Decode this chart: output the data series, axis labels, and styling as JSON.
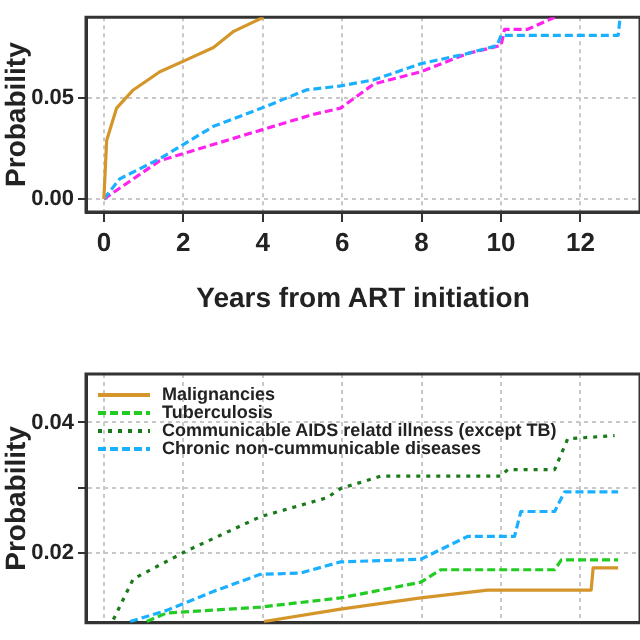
{
  "chart_data": [
    {
      "type": "line",
      "xlabel": "Years from ART initiation",
      "ylabel": "Probability",
      "xlim": [
        -0.45,
        13.5
      ],
      "ylim": [
        -0.0064,
        0.09
      ],
      "xticks": [
        0,
        2,
        4,
        6,
        8,
        10,
        12
      ],
      "yticks": [
        {
          "value": 0,
          "label": "0.00"
        },
        0.05
      ],
      "grid": true,
      "legend": false,
      "marker": "none",
      "series": [
        {
          "color": "#d4962a",
          "line_style": "solid",
          "x": [
            0,
            0.07,
            0.32,
            0.74,
            1.41,
            2.09,
            2.76,
            3.27,
            4.02
          ],
          "values": [
            0,
            0.029,
            0.045,
            0.054,
            0.063,
            0.069,
            0.075,
            0.083,
            0.09
          ]
        },
        {
          "color": "#1ab0ff",
          "line_style": "dashed",
          "x": [
            0,
            0.4,
            1.41,
            2.76,
            4.1,
            5.1,
            5.96,
            6.8,
            7.98,
            9.15,
            9.9,
            10.0,
            12.95,
            13.0
          ],
          "values": [
            0,
            0.01,
            0.02,
            0.036,
            0.046,
            0.054,
            0.056,
            0.059,
            0.067,
            0.072,
            0.076,
            0.081,
            0.081,
            0.09
          ]
        },
        {
          "color": "#ff22ee",
          "line_style": "dashed",
          "x": [
            0,
            1.41,
            4.1,
            5.29,
            5.96,
            6.8,
            7.98,
            9.15,
            10.0,
            10.09,
            10.67,
            11.35
          ],
          "values": [
            0,
            0.019,
            0.035,
            0.042,
            0.045,
            0.057,
            0.063,
            0.072,
            0.076,
            0.084,
            0.084,
            0.09
          ]
        }
      ]
    },
    {
      "type": "line",
      "ylabel": "Probability",
      "xlim": [
        -0.45,
        13.5
      ],
      "ylim": [
        0.0094,
        0.0474
      ],
      "xticks": [
        0,
        2,
        4,
        6,
        8,
        10,
        12
      ],
      "yticks": [
        0.02,
        {
          "value": 0.03,
          "label": null
        },
        0.04
      ],
      "grid": true,
      "legend": "top left",
      "tick_labels": "y",
      "marker": "none",
      "series": [
        {
          "name": "Malignancies",
          "color": "#d4962a",
          "line_style": "solid",
          "x": [
            4.03,
            5.96,
            7.98,
            9.66,
            12.27,
            12.32,
            12.95
          ],
          "values": [
            0.0096,
            0.0115,
            0.0132,
            0.0144,
            0.0144,
            0.0178,
            0.0178
          ]
        },
        {
          "name": "Tuberculosis",
          "color": "#22cc22",
          "line_style": "dashed",
          "x": [
            1.08,
            1.58,
            3.94,
            5.96,
            7.98,
            8.48,
            11.35,
            11.52,
            12.95
          ],
          "values": [
            0.0096,
            0.0109,
            0.0118,
            0.0132,
            0.0156,
            0.0175,
            0.0175,
            0.019,
            0.019
          ]
        },
        {
          "name": "Communicable AIDS relatd illness (except TB)",
          "color": "#1a7a1a",
          "line_style": "dotted",
          "x": [
            0.24,
            0.74,
            2.09,
            3.94,
            5.62,
            5.96,
            6.97,
            10.0,
            10.17,
            11.35,
            11.68,
            12.86
          ],
          "values": [
            0.0099,
            0.0161,
            0.0204,
            0.0256,
            0.0285,
            0.0299,
            0.0318,
            0.0318,
            0.0328,
            0.0328,
            0.0375,
            0.038
          ]
        },
        {
          "name": "Chronic non-cummunicable diseases",
          "color": "#1ab0ff",
          "line_style": "dashed",
          "x": [
            0.66,
            1.58,
            2.76,
            3.94,
            4.95,
            5.96,
            7.98,
            9.16,
            10.34,
            10.5,
            11.35,
            11.6,
            12.95
          ],
          "values": [
            0.0096,
            0.0113,
            0.0142,
            0.0168,
            0.017,
            0.0187,
            0.0191,
            0.0226,
            0.0226,
            0.0264,
            0.0264,
            0.0294,
            0.0294
          ]
        }
      ]
    }
  ]
}
